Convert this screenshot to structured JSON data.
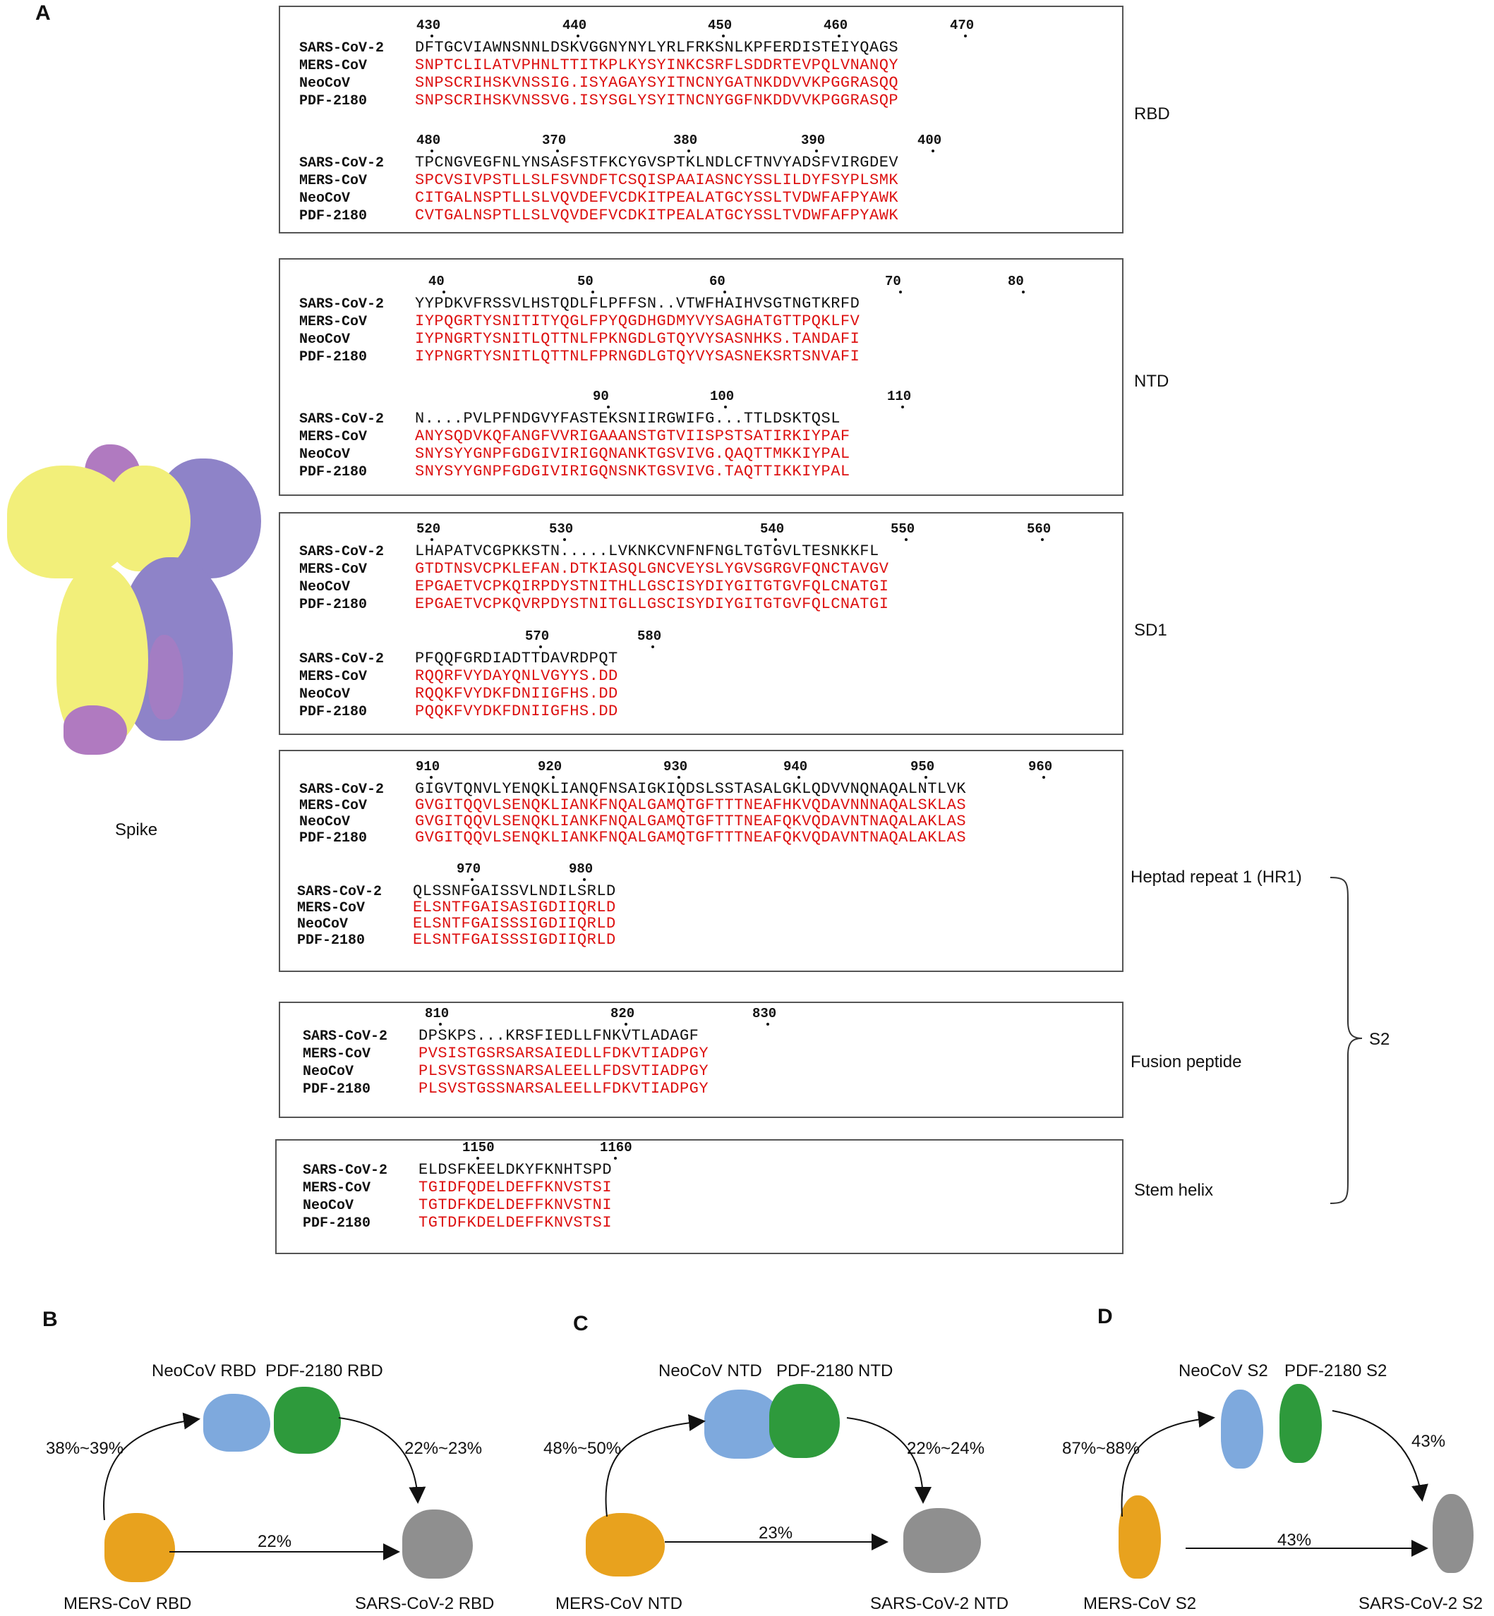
{
  "panels": {
    "a": "A",
    "b": "B",
    "c": "C",
    "d": "D"
  },
  "spike_label": "Spike",
  "names": [
    "SARS-CoV-2",
    "MERS-CoV",
    "NeoCoV",
    "PDF-2180"
  ],
  "regions": {
    "rbd": "RBD",
    "ntd": "NTD",
    "sd1": "SD1",
    "hr1": "Heptad repeat 1 (HR1)",
    "fp": "Fusion peptide",
    "stem": "Stem helix",
    "s2": "S2"
  },
  "blocks": [
    {
      "id": "rbd1",
      "numbers": [
        "430",
        "440",
        "450",
        "460",
        "470"
      ],
      "seqs": [
        "DFTGCVIAWNSNNLDSKVGGNYNYLYRLFRKSNLKPFERDISTEIYQAGS",
        "SNPTCLILATVPHNLTTITKPLKYSYINKCSRFLSDDRTEVPQLVNANQY",
        "SNPSCRIHSKVNSSIG.ISYAGAYSYITNCNYGATNKDDVVKPGGRASQQ",
        "SNPSCRIHSKVNSSVG.ISYSGLYSYITNCNYGGFNKDDVVKPGGRASQP"
      ]
    },
    {
      "id": "rbd2",
      "numbers": [
        "480",
        "370",
        "380",
        "390",
        "400"
      ],
      "seqs": [
        "TPCNGVEGFNLYNSASFSTFKCYGVSPTKLNDLCFTNVYADSFVIRGDEV",
        "SPCVSIVPSTLLSLFSVNDFTCSQISPAAIASNCYSSLILDYFSYPLSMK",
        "CITGALNSPTLLSLVQVDEFVCDKITPEALATGCYSSLTVDWFAFPYAWK",
        "CVTGALNSPTLLSLVQVDEFVCDKITPEALATGCYSSLTVDWFAFPYAWK"
      ]
    },
    {
      "id": "ntd1",
      "numbers": [
        "40",
        "50",
        "60",
        "70",
        "80"
      ],
      "seqs": [
        "YYPDKVFRSSVLHSTQDLFLPFFSN..VTWFHAIHVSGTNGTKRFD",
        "IYPQGRTYSNITITYQGLFPYQGDHGDMYVYSAGHATGTTPQKLFV",
        "IYPNGRTYSNITLQTTNLFPKNGDLGTQYVYSASNHKS.TANDAFI",
        "IYPNGRTYSNITLQTTNLFPRNGDLGTQYVYSASNEKSRTSNVAFI"
      ]
    },
    {
      "id": "ntd2",
      "numbers": [
        "90",
        "100",
        "110"
      ],
      "seqs": [
        "N....PVLPFNDGVYFASTEKSNIIRGWIFG...TTLDSKTQSL",
        "ANYSQDVKQFANGFVVRIGAAANSTGTVIISPSTSATIRKIYPAF",
        "SNYSYYGNPFGDGIVIRIGQNANKTGSVIVG.QAQTTMKKIYPAL",
        "SNYSYYGNPFGDGIVIRIGQNSNKTGSVIVG.TAQTTIKKIYPAL"
      ]
    },
    {
      "id": "sd1a",
      "numbers": [
        "520",
        "530",
        "540",
        "550",
        "560"
      ],
      "seqs": [
        "LHAPATVCGPKKSTN.....LVKNKCVNFNFNGLTGTGVLTESNKKFL",
        "GTDTNSVCPKLEFAN.DTKIASQLGNCVEYSLYGVSGRGVFQNCTAVGV",
        "EPGAETVCPKQIRPDYSTNITHLLGSCISYDIYGITGTGVFQLCNATGI",
        "EPGAETVCPKQVRPDYSTNITGLLGSCISYDIYGITGTGVFQLCNATGI"
      ]
    },
    {
      "id": "sd1b",
      "numbers": [
        "570",
        "580"
      ],
      "seqs": [
        "PFQQFGRDIADTTDAVRDPQT",
        "RQQRFVYDAYQNLVGYYS.DD",
        "RQQKFVYDKFDNIIGFHS.DD",
        "PQQKFVYDKFDNIIGFHS.DD"
      ]
    },
    {
      "id": "hr1a",
      "numbers": [
        "910",
        "920",
        "930",
        "940",
        "950",
        "960"
      ],
      "seqs": [
        "GIGVTQNVLYENQKLIANQFNSAIGKIQDSLSSTASALGKLQDVVNQNAQALNTLVK",
        "GVGITQQVLSENQKLIANKFNQALGAMQTGFTTTNEAFHKVQDAVNNNAQALSKLAS",
        "GVGITQQVLSENQKLIANKFNQALGAMQTGFTTTNEAFQKVQDAVNTNAQALAKLAS",
        "GVGITQQVLSENQKLIANKFNQALGAMQTGFTTTNEAFQKVQDAVNTNAQALAKLAS"
      ]
    },
    {
      "id": "hr1b",
      "numbers": [
        "970",
        "980"
      ],
      "seqs": [
        "QLSSNFGAISSVLNDILSRLD",
        "ELSNTFGAISASIGDIIQRLD",
        "ELSNTFGAISSSIGDIIQRLD",
        "ELSNTFGAISSSIGDIIQRLD"
      ]
    },
    {
      "id": "fp",
      "numbers": [
        "810",
        "820",
        "830"
      ],
      "seqs": [
        "DPSKPS...KRSFIEDLLFNKVTLADAGF",
        "PVSISTGSRSARSAIEDLLFDKVTIADPGY",
        "PLSVSTGSSNARSALEELLFDSVTIADPGY",
        "PLSVSTGSSNARSALEELLFDKVTIADPGY"
      ]
    },
    {
      "id": "stem",
      "numbers": [
        "1150",
        "1160"
      ],
      "seqs": [
        "ELDSFKEELDKYFKNHTSPD",
        "TGIDFQDELDEFFKNVSTSI",
        "TGTDFKDELDEFFKNVSTNI",
        "TGTDFKDELDEFFKNVSTSI"
      ]
    }
  ],
  "panel_b": {
    "top_left": "NeoCoV RBD",
    "top_right": "PDF-2180 RBD",
    "left_pct": "38%~39%",
    "right_pct": "22%~23%",
    "mid_pct": "22%",
    "bottom_left": "MERS-CoV RBD",
    "bottom_right": "SARS-CoV-2 RBD"
  },
  "panel_c": {
    "top_left": "NeoCoV NTD",
    "top_right": "PDF-2180 NTD",
    "left_pct": "48%~50%",
    "right_pct": "22%~24%",
    "mid_pct": "23%",
    "bottom_left": "MERS-CoV NTD",
    "bottom_right": "SARS-CoV-2 NTD"
  },
  "panel_d": {
    "top_left": "NeoCoV S2",
    "top_right": "PDF-2180 S2",
    "left_pct": "87%~88%",
    "right_pct": "43%",
    "mid_pct": "43%",
    "bottom_left": "MERS-CoV S2",
    "bottom_right": "SARS-CoV-2 S2"
  },
  "colors": {
    "yellow": "#f2ef7a",
    "purple": "#8e83c8",
    "pink": "#b07ac0",
    "orange": "#e8a21e",
    "blue": "#7ea9dd",
    "green": "#2e9a3c",
    "gray": "#8f8f8f",
    "red": "#e21f1f"
  }
}
